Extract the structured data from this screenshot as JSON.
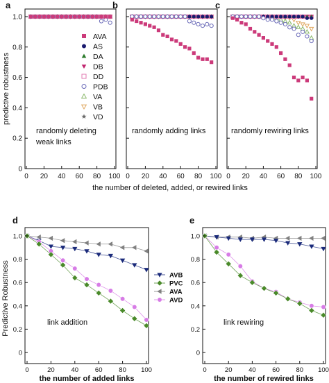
{
  "chart_data": [
    {
      "type": "scatter",
      "panel_label": "a",
      "ylabel": "predictive robustness",
      "annotation": [
        "randomly deleting",
        "weak links"
      ],
      "xlim": [
        0,
        100
      ],
      "ylim": [
        0,
        1.05
      ],
      "xticks": [
        0,
        20,
        40,
        60,
        80,
        100
      ],
      "yticks": [
        0,
        0.2,
        0.4,
        0.6,
        0.8,
        1.0
      ],
      "ytick_labels": [
        "0",
        "0.2",
        "0.4",
        "0.6",
        "0.8",
        "1.0"
      ],
      "legend": [
        "AVA",
        "AS",
        "DA",
        "DB",
        "DD",
        "PDB",
        "VA",
        "VB",
        "VD"
      ],
      "x": [
        5,
        10,
        15,
        20,
        25,
        30,
        35,
        40,
        45,
        50,
        55,
        60,
        65,
        70,
        75,
        80,
        85,
        90,
        95
      ],
      "series": [
        {
          "name": "AVA",
          "values": [
            1,
            1,
            1,
            1,
            1,
            1,
            1,
            1,
            1,
            1,
            1,
            1,
            1,
            1,
            1,
            1,
            1,
            1,
            1
          ]
        },
        {
          "name": "AS",
          "values": [
            1,
            1,
            1,
            1,
            1,
            1,
            1,
            1,
            1,
            1,
            1,
            1,
            1,
            1,
            1,
            1,
            1,
            1,
            1
          ]
        },
        {
          "name": "DA",
          "values": [
            1,
            1,
            1,
            1,
            1,
            1,
            1,
            1,
            1,
            1,
            1,
            1,
            1,
            1,
            1,
            1,
            1,
            1,
            1
          ]
        },
        {
          "name": "DB",
          "values": [
            1,
            1,
            1,
            1,
            1,
            1,
            1,
            1,
            1,
            1,
            1,
            1,
            1,
            1,
            1,
            1,
            1,
            1,
            1
          ]
        },
        {
          "name": "DD",
          "values": [
            1,
            1,
            1,
            1,
            1,
            1,
            1,
            1,
            1,
            1,
            1,
            1,
            1,
            1,
            1,
            1,
            1,
            1,
            1
          ]
        },
        {
          "name": "PDB",
          "values": [
            1,
            1,
            1,
            1,
            1,
            1,
            1,
            1,
            1,
            1,
            1,
            1,
            1,
            1,
            1,
            1,
            0.97,
            0.98,
            0.96
          ]
        },
        {
          "name": "VA",
          "values": [
            1,
            1,
            1,
            1,
            1,
            1,
            1,
            1,
            1,
            1,
            1,
            1,
            1,
            1,
            1,
            1,
            1,
            1,
            1
          ]
        },
        {
          "name": "VB",
          "values": [
            1,
            1,
            1,
            1,
            1,
            1,
            1,
            1,
            1,
            1,
            1,
            1,
            1,
            1,
            1,
            1,
            1,
            1,
            1
          ]
        },
        {
          "name": "VD",
          "values": [
            1,
            1,
            1,
            1,
            1,
            1,
            1,
            1,
            1,
            1,
            1,
            1,
            1,
            1,
            1,
            1,
            1,
            1,
            1
          ]
        }
      ]
    },
    {
      "type": "scatter",
      "panel_label": "b",
      "annotation": [
        "randomly adding links"
      ],
      "xlim": [
        0,
        100
      ],
      "ylim": [
        0,
        1.05
      ],
      "xticks": [
        0,
        20,
        40,
        60,
        80,
        100
      ],
      "x": [
        5,
        10,
        15,
        20,
        25,
        30,
        35,
        40,
        45,
        50,
        55,
        60,
        65,
        70,
        75,
        80,
        85,
        90,
        95
      ],
      "series": [
        {
          "name": "AVA",
          "values": [
            0.98,
            0.97,
            0.96,
            0.95,
            0.94,
            0.93,
            0.91,
            0.88,
            0.87,
            0.85,
            0.84,
            0.82,
            0.8,
            0.79,
            0.76,
            0.73,
            0.72,
            0.72,
            0.7
          ]
        },
        {
          "name": "AS",
          "values": [
            1,
            1,
            1,
            1,
            1,
            1,
            1,
            1,
            1,
            1,
            1,
            1,
            1,
            1,
            1,
            1,
            1,
            1,
            1
          ]
        },
        {
          "name": "DA",
          "values": [
            1,
            1,
            1,
            1,
            1,
            1,
            1,
            1,
            1,
            1,
            1,
            1,
            1,
            1,
            1,
            1,
            1,
            1,
            1
          ]
        },
        {
          "name": "DB",
          "values": [
            1,
            1,
            1,
            1,
            1,
            1,
            1,
            1,
            1,
            1,
            1,
            1,
            1,
            1,
            1,
            1,
            1,
            1,
            1
          ]
        },
        {
          "name": "DD",
          "values": [
            1,
            1,
            1,
            1,
            1,
            1,
            1,
            1,
            1,
            1,
            1,
            1,
            1,
            1,
            1,
            1,
            1,
            1,
            1
          ]
        },
        {
          "name": "PDB",
          "values": [
            1,
            1,
            1,
            1,
            1,
            1,
            1,
            1,
            1,
            1,
            1,
            1,
            1,
            0.97,
            0.96,
            0.95,
            0.94,
            0.95,
            0.94
          ]
        },
        {
          "name": "VA",
          "values": [
            1,
            1,
            1,
            1,
            1,
            1,
            1,
            1,
            1,
            1,
            1,
            1,
            1,
            1,
            1,
            1,
            1,
            1,
            1
          ]
        },
        {
          "name": "VB",
          "values": [
            1,
            1,
            1,
            1,
            1,
            1,
            1,
            1,
            1,
            1,
            1,
            1,
            1,
            1,
            1,
            1,
            1,
            1,
            1
          ]
        },
        {
          "name": "VD",
          "values": [
            1,
            1,
            1,
            1,
            1,
            1,
            1,
            1,
            1,
            1,
            1,
            1,
            1,
            1,
            1,
            1,
            1,
            1,
            1
          ]
        }
      ]
    },
    {
      "type": "scatter",
      "panel_label": "c",
      "annotation": [
        "randomly rewiring links"
      ],
      "xlim": [
        0,
        100
      ],
      "ylim": [
        0,
        1.05
      ],
      "xticks": [
        0,
        20,
        40,
        60,
        80,
        100
      ],
      "x": [
        5,
        10,
        15,
        20,
        25,
        30,
        35,
        40,
        45,
        50,
        55,
        60,
        65,
        70,
        75,
        80,
        85,
        90,
        95
      ],
      "series": [
        {
          "name": "AVA",
          "values": [
            0.99,
            0.98,
            0.96,
            0.95,
            0.92,
            0.9,
            0.88,
            0.86,
            0.84,
            0.82,
            0.8,
            0.76,
            0.72,
            0.68,
            0.6,
            0.58,
            0.6,
            0.58,
            0.46
          ]
        },
        {
          "name": "AS",
          "values": [
            1,
            1,
            1,
            1,
            1,
            1,
            1,
            1,
            1,
            1,
            1,
            1,
            1,
            1,
            1,
            1,
            1,
            0.99,
            0.99
          ]
        },
        {
          "name": "DA",
          "values": [
            1,
            1,
            1,
            1,
            1,
            1,
            1,
            1,
            1,
            1,
            1,
            1,
            1,
            1,
            1,
            1,
            1,
            1,
            1
          ]
        },
        {
          "name": "DB",
          "values": [
            1,
            1,
            1,
            1,
            1,
            1,
            1,
            1,
            1,
            1,
            1,
            1,
            1,
            1,
            1,
            1,
            1,
            1,
            1
          ]
        },
        {
          "name": "DD",
          "values": [
            1,
            1,
            1,
            1,
            1,
            1,
            1,
            1,
            1,
            1,
            1,
            1,
            1,
            1,
            1,
            1,
            1,
            1,
            1
          ]
        },
        {
          "name": "PDB",
          "values": [
            1,
            1,
            1,
            1,
            1,
            1,
            1,
            0.99,
            0.98,
            0.98,
            0.97,
            0.96,
            0.95,
            0.93,
            0.92,
            0.88,
            0.9,
            0.87,
            0.84
          ]
        },
        {
          "name": "VA",
          "values": [
            1,
            1,
            1,
            1,
            1,
            1,
            1,
            1,
            1,
            1,
            0.99,
            0.98,
            0.97,
            0.96,
            0.94,
            0.93,
            0.92,
            0.9,
            0.86
          ]
        },
        {
          "name": "VB",
          "values": [
            1,
            1,
            1,
            1,
            1,
            1,
            1,
            1,
            1,
            1,
            1,
            1,
            0.99,
            0.99,
            0.98,
            0.96,
            0.95,
            0.94,
            0.92
          ]
        },
        {
          "name": "VD",
          "values": [
            1,
            1,
            1,
            1,
            1,
            1,
            1,
            1,
            1,
            1,
            1,
            1,
            1,
            1,
            1,
            1,
            1,
            1,
            1
          ]
        }
      ]
    },
    {
      "type": "line",
      "panel_label": "d",
      "ylabel": "Predictive Robustness",
      "xlabel": "the number of added links",
      "annotation": [
        "link addition"
      ],
      "xlim": [
        0,
        100
      ],
      "ylim": [
        0,
        1.0
      ],
      "xticks": [
        0,
        20,
        40,
        60,
        80,
        100
      ],
      "yticks": [
        0,
        0.2,
        0.4,
        0.6,
        0.8,
        1.0
      ],
      "ytick_labels": [
        "0",
        "0.2",
        "0.4",
        "0.6",
        "0.8",
        "1.0"
      ],
      "legend": [
        "AVB",
        "PVC",
        "AVA",
        "AVD"
      ],
      "x": [
        0,
        10,
        20,
        30,
        40,
        50,
        60,
        70,
        80,
        90,
        100
      ],
      "series": [
        {
          "name": "AVB",
          "values": [
            1.0,
            0.96,
            0.91,
            0.9,
            0.89,
            0.87,
            0.84,
            0.83,
            0.79,
            0.75,
            0.71
          ]
        },
        {
          "name": "PVC",
          "values": [
            1.0,
            0.93,
            0.84,
            0.75,
            0.64,
            0.58,
            0.51,
            0.44,
            0.36,
            0.29,
            0.23
          ]
        },
        {
          "name": "AVA",
          "values": [
            1.0,
            0.99,
            0.98,
            0.96,
            0.95,
            0.94,
            0.93,
            0.93,
            0.9,
            0.9,
            0.87
          ]
        },
        {
          "name": "AVD",
          "values": [
            1.0,
            0.95,
            0.87,
            0.79,
            0.72,
            0.63,
            0.58,
            0.53,
            0.46,
            0.39,
            0.28
          ]
        }
      ]
    },
    {
      "type": "line",
      "panel_label": "e",
      "xlabel": "the number of rewired links",
      "annotation": [
        "link rewiring"
      ],
      "xlim": [
        0,
        100
      ],
      "ylim": [
        0,
        1.0
      ],
      "xticks": [
        0,
        20,
        40,
        60,
        80,
        100
      ],
      "yticks": [
        0,
        0.2,
        0.4,
        0.6,
        0.8,
        1.0
      ],
      "ytick_labels": [
        "0",
        "0.2",
        "0.4",
        "0.6",
        "0.8",
        "1.0"
      ],
      "x": [
        0,
        10,
        20,
        30,
        40,
        50,
        60,
        70,
        80,
        90,
        100
      ],
      "series": [
        {
          "name": "AVB",
          "values": [
            1.0,
            0.99,
            0.98,
            0.97,
            0.97,
            0.97,
            0.96,
            0.94,
            0.93,
            0.91,
            0.89
          ]
        },
        {
          "name": "PVC",
          "values": [
            1.0,
            0.86,
            0.76,
            0.66,
            0.6,
            0.55,
            0.51,
            0.46,
            0.42,
            0.36,
            0.32
          ]
        },
        {
          "name": "AVA",
          "values": [
            1.0,
            0.99,
            0.99,
            0.99,
            0.98,
            0.99,
            0.98,
            0.98,
            0.98,
            0.98,
            0.98
          ]
        },
        {
          "name": "AVD",
          "values": [
            1.0,
            0.9,
            0.84,
            0.74,
            0.61,
            0.55,
            0.52,
            0.46,
            0.43,
            0.4,
            0.39
          ]
        }
      ]
    }
  ],
  "shared_axes": {
    "top_xlabel": "the number of deleted, added, or rewired links"
  },
  "colors": {
    "AVA_top": "#cc3a7a",
    "AS": "#1a1a6e",
    "DA": "#2a7a2a",
    "DB": "#c0246e",
    "DD": "#e07ab0",
    "PDB": "#6a6ab8",
    "VA": "#8ab86a",
    "VB": "#e0a860",
    "VD": "#666666",
    "AVB": "#1a2a7a",
    "PVC": "#4a8a2a",
    "AVA_bottom": "#808080",
    "AVD": "#d77ce6"
  },
  "icons": {
    "AVA": "square-marker",
    "AS": "filled-circle-marker",
    "DA": "filled-triangle-up-marker",
    "DB": "filled-triangle-down-marker",
    "DD": "open-square-marker",
    "PDB": "open-circle-marker",
    "VA": "open-triangle-up-marker",
    "VB": "open-triangle-down-marker",
    "VD": "star-marker",
    "AVB_d": "triangle-down-marker",
    "PVC_d": "diamond-marker",
    "AVA_d": "triangle-left-marker",
    "AVD_d": "circle-marker"
  }
}
